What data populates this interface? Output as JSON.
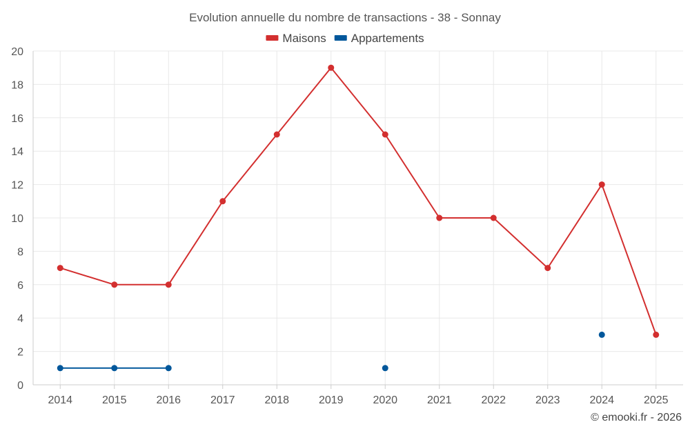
{
  "chart_data": {
    "type": "line",
    "title": "Evolution annuelle du nombre de transactions - 38 - Sonnay",
    "categories": [
      "2014",
      "2015",
      "2016",
      "2017",
      "2018",
      "2019",
      "2020",
      "2021",
      "2022",
      "2023",
      "2024",
      "2025"
    ],
    "ylim": [
      0,
      20
    ],
    "yticks": [
      0,
      2,
      4,
      6,
      8,
      10,
      12,
      14,
      16,
      18,
      20
    ],
    "grid": true,
    "legend_position": "top-center",
    "series": [
      {
        "name": "Maisons",
        "color": "#d32f2f",
        "values": [
          7,
          6,
          6,
          11,
          15,
          19,
          15,
          10,
          10,
          7,
          12,
          3
        ]
      },
      {
        "name": "Appartements",
        "color": "#01579b",
        "values": [
          1,
          1,
          1,
          null,
          null,
          null,
          1,
          null,
          null,
          null,
          3,
          null
        ]
      }
    ]
  },
  "footer": {
    "credit": "© emooki.fr - 2026"
  }
}
